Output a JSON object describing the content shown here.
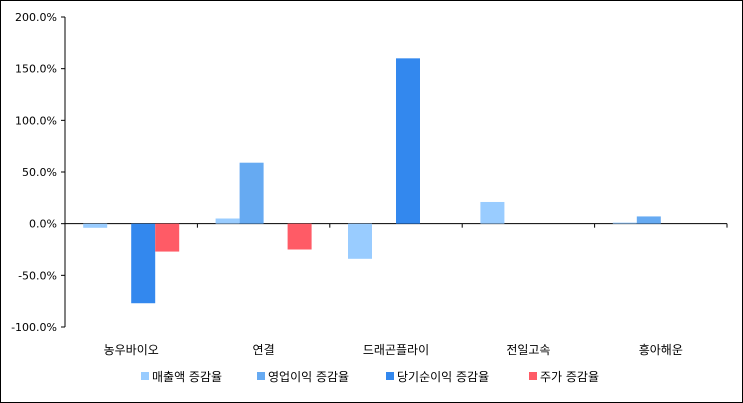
{
  "chart_data": {
    "type": "bar",
    "categories": [
      "농우바이오",
      "연결",
      "드래곤플라이",
      "전일고속",
      "흥아해운"
    ],
    "series": [
      {
        "name": "매출액 증감율",
        "color": "#99ccff",
        "values": [
          -4.0,
          5.0,
          -34.0,
          21.0,
          1.0
        ]
      },
      {
        "name": "영업이익 증감율",
        "color": "#66aaf2",
        "values": [
          null,
          59.0,
          null,
          null,
          7.0
        ]
      },
      {
        "name": "당기순이익 증감율",
        "color": "#3388ee",
        "values": [
          -77.0,
          null,
          160.0,
          null,
          null
        ]
      },
      {
        "name": "주가 증감율",
        "color": "#ff5b66",
        "values": [
          -27.0,
          -25.0,
          null,
          null,
          null
        ]
      }
    ],
    "yticks": [
      "200.0%",
      "150.0%",
      "100.0%",
      "50.0%",
      "0.0%",
      "-50.0%",
      "-100.0%"
    ],
    "ylim": [
      -100,
      200
    ],
    "legend_position": "bottom",
    "title": "",
    "xlabel": "",
    "ylabel": ""
  }
}
